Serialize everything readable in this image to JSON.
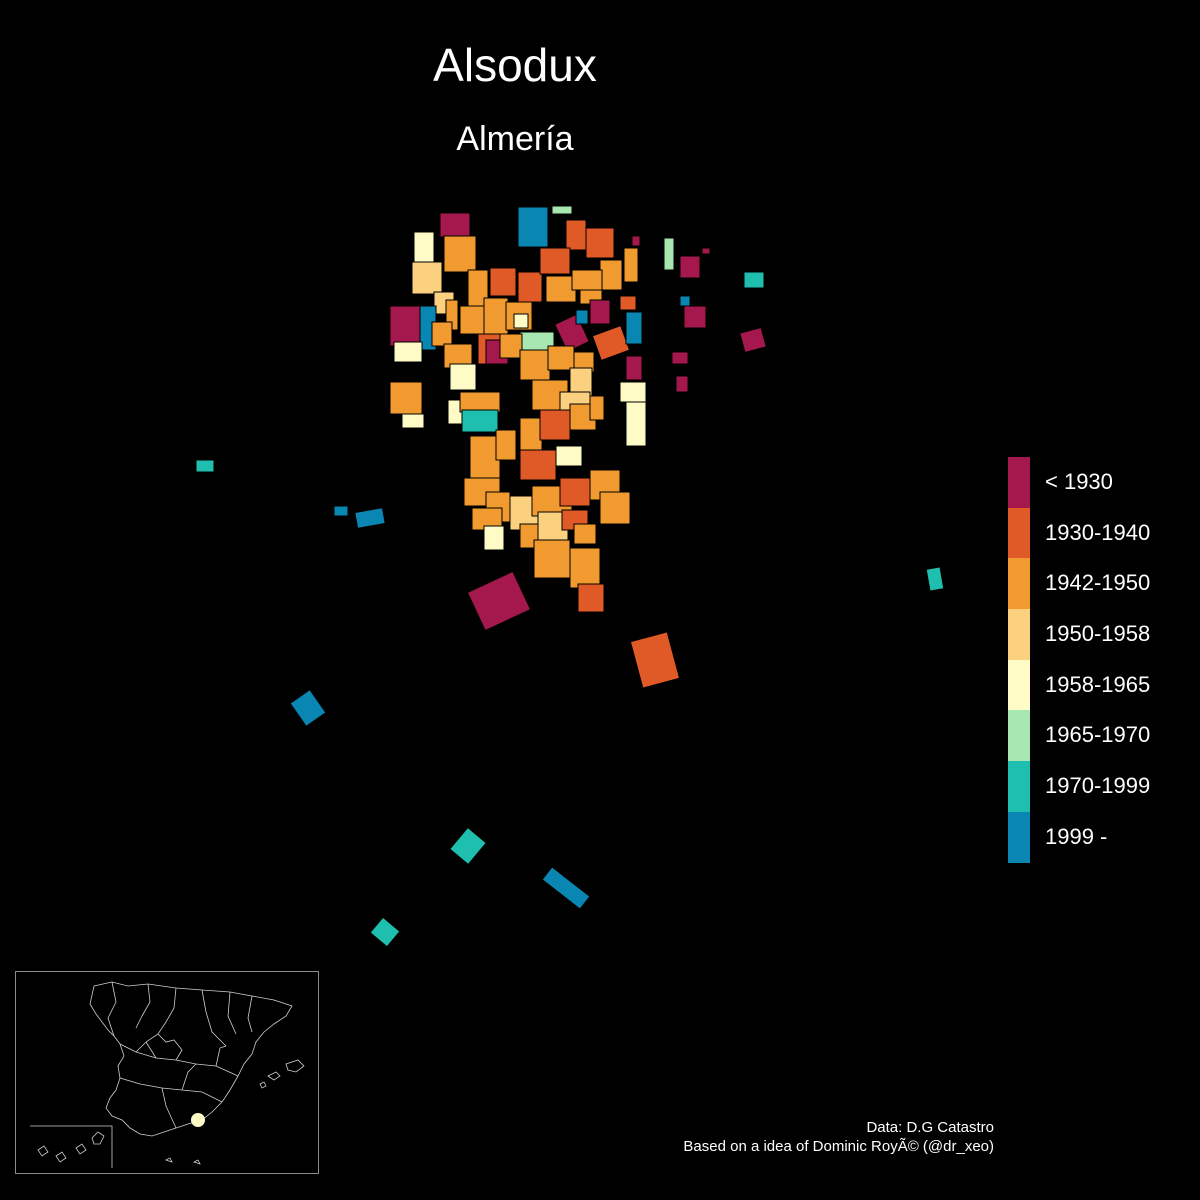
{
  "title": "Alsodux",
  "subtitle": "Almería",
  "legend": [
    {
      "label": "< 1930",
      "color": "#a4184d"
    },
    {
      "label": "1930-1940",
      "color": "#e05a27"
    },
    {
      "label": "1942-1950",
      "color": "#f09a2f"
    },
    {
      "label": "1950-1958",
      "color": "#fbd17f"
    },
    {
      "label": "1958-1965",
      "color": "#fefbc6"
    },
    {
      "label": "1965-1970",
      "color": "#a8e8b0"
    },
    {
      "label": "1970-1999",
      "color": "#1fbfb0"
    },
    {
      "label": "1999 -",
      "color": "#0a86b3"
    }
  ],
  "credits": {
    "line1": "Data: D.G Catastro",
    "line2": "Based on a idea of Dominic RoyÃ© (@dr_xeo)"
  },
  "inset": {
    "locator_color": "#fefbc6"
  }
}
